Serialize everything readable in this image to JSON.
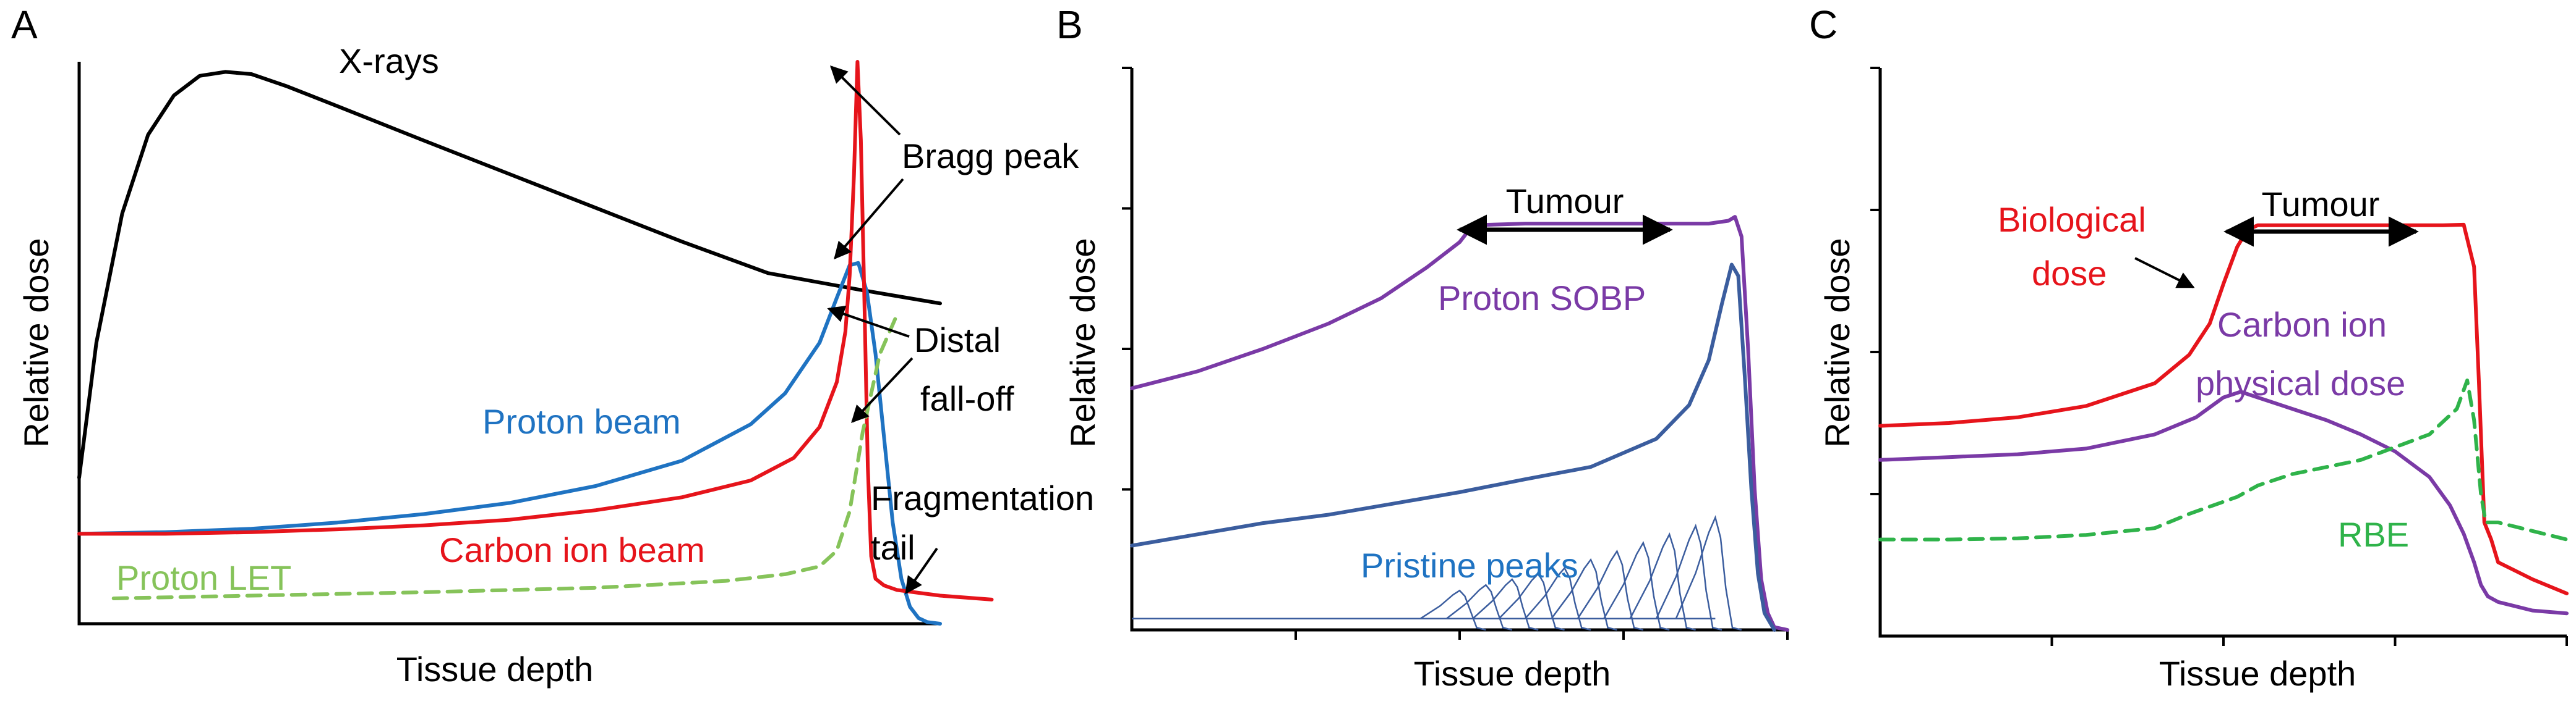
{
  "chart_data": [
    {
      "panel": "A",
      "type": "line",
      "xlabel": "Tissue depth",
      "ylabel": "Relative dose",
      "xlim": [
        0,
        100
      ],
      "ylim": [
        0,
        100
      ],
      "grid": false,
      "series": [
        {
          "name": "X-rays",
          "color": "#000000",
          "dash": "solid",
          "x": [
            0,
            2,
            5,
            8,
            11,
            14,
            17,
            20,
            24,
            30,
            40,
            50,
            60,
            70,
            80,
            90,
            95,
            100
          ],
          "y": [
            26,
            50,
            73,
            87,
            94,
            97.5,
            98.2,
            97.8,
            95.7,
            92.1,
            86,
            80,
            74,
            68,
            62.4,
            59.6,
            58.3,
            57
          ]
        },
        {
          "name": "Proton beam",
          "color": "#1f73c2",
          "dash": "solid",
          "x": [
            0,
            10,
            20,
            30,
            40,
            50,
            60,
            70,
            78,
            82,
            86,
            88,
            89.5,
            90.5,
            91.5,
            92.5,
            93.5,
            94.5,
            95.5,
            96.5,
            97.5,
            98.5,
            100
          ],
          "y": [
            16,
            16.3,
            16.9,
            18,
            19.5,
            21.5,
            24.5,
            29,
            35.5,
            41,
            50,
            58,
            63.8,
            64.2,
            59,
            48,
            33,
            18,
            8,
            3,
            1,
            0.3,
            0
          ]
        },
        {
          "name": "Carbon ion beam",
          "color": "#e6141b",
          "dash": "solid",
          "x": [
            0,
            10,
            20,
            30,
            40,
            50,
            60,
            70,
            78,
            83,
            86,
            88,
            89,
            89.5,
            90,
            90.4,
            90.8,
            91.2,
            91.6,
            92,
            92.5,
            93.5,
            95,
            98,
            100,
            106
          ],
          "y": [
            16,
            16,
            16.3,
            16.8,
            17.5,
            18.5,
            20.2,
            22.5,
            25.5,
            29.5,
            35,
            43,
            52,
            62,
            80,
            100,
            86,
            58,
            28,
            12,
            8,
            6.8,
            6,
            5.4,
            5,
            4.3
          ]
        },
        {
          "name": "Proton LET",
          "color": "#86c35a",
          "dash": "dashed",
          "x": [
            4,
            20,
            40,
            60,
            75,
            82,
            86,
            88,
            89.5,
            91,
            93,
            95
          ],
          "y": [
            4.5,
            5,
            5.6,
            6.4,
            7.6,
            8.8,
            10.2,
            13,
            20,
            34,
            48,
            55
          ]
        }
      ],
      "annotations": [
        "X-rays",
        "Bragg peak",
        "Distal",
        "fall-off",
        "Fragmentation",
        "tail",
        "Proton beam",
        "Carbon ion beam",
        "Proton LET"
      ]
    },
    {
      "panel": "B",
      "type": "line",
      "xlabel": "Tissue depth",
      "ylabel": "Relative dose",
      "xlim": [
        0,
        100
      ],
      "ylim": [
        0,
        100
      ],
      "grid": false,
      "series": [
        {
          "name": "Proton SOBP",
          "color": "#7a3aa6",
          "dash": "solid",
          "x": [
            0,
            10,
            20,
            30,
            38,
            45,
            50,
            52,
            60,
            70,
            80,
            88,
            91,
            92,
            93,
            94,
            95,
            96,
            97,
            98,
            100
          ],
          "y": [
            43,
            46,
            50,
            54.5,
            59,
            64.5,
            69,
            72,
            72.3,
            72.3,
            72.3,
            72.3,
            72.8,
            73.5,
            70,
            50,
            25,
            9,
            3,
            0.5,
            0
          ]
        },
        {
          "name": "Pristine peak (distal)",
          "color": "#3b5d9e",
          "dash": "solid",
          "x": [
            0,
            10,
            20,
            30,
            40,
            50,
            60,
            70,
            80,
            85,
            88,
            90,
            91.5,
            92.5,
            93.5,
            94.5,
            95.5,
            96.5,
            98
          ],
          "y": [
            15,
            17,
            19,
            20.5,
            22.5,
            24.5,
            26.8,
            29,
            34,
            40,
            48,
            58,
            65,
            63,
            45,
            25,
            10,
            3,
            0
          ]
        }
      ],
      "pristine_peaks": {
        "name": "Pristine peaks",
        "color": "#3b5d9e",
        "peak_positions": [
          50,
          54,
          58,
          62,
          66,
          70,
          74,
          78,
          82,
          86,
          89
        ],
        "peak_heights": [
          5,
          6,
          7,
          8,
          9,
          10.5,
          12,
          13.5,
          15,
          16.5,
          18
        ],
        "baseline": 2
      },
      "annotations": [
        "Tumour",
        "Proton SOBP",
        "Pristine peaks"
      ]
    },
    {
      "panel": "C",
      "type": "line",
      "xlabel": "Tissue depth",
      "ylabel": "Relative dose",
      "xlim": [
        0,
        100
      ],
      "ylim": [
        0,
        100
      ],
      "grid": false,
      "series": [
        {
          "name": "Biological dose",
          "color": "#e6141b",
          "dash": "solid",
          "x": [
            0,
            10,
            20,
            30,
            40,
            45,
            48,
            50,
            52,
            53.5,
            55,
            70,
            82,
            85,
            86.5,
            87.2,
            88,
            89,
            90,
            95,
            100
          ],
          "y": [
            37,
            37.5,
            38.5,
            40.5,
            44.5,
            49.5,
            55,
            62,
            68.5,
            71.5,
            72.3,
            72.3,
            72.3,
            72.4,
            65,
            45,
            20,
            17,
            13,
            10,
            7.5
          ]
        },
        {
          "name": "Carbon ion physical dose",
          "color": "#7a3aa6",
          "dash": "solid",
          "x": [
            0,
            10,
            20,
            30,
            40,
            46,
            50,
            52.5,
            55,
            60,
            65,
            70,
            75,
            80,
            83,
            85,
            86.5,
            87.5,
            88.5,
            90,
            95,
            100
          ],
          "y": [
            31,
            31.5,
            32,
            33,
            35.5,
            38.5,
            42,
            43,
            42,
            40,
            38,
            35.5,
            32.5,
            28,
            23,
            18,
            13,
            9,
            7,
            6,
            4.5,
            4
          ]
        },
        {
          "name": "RBE",
          "color": "#2fb34a",
          "dash": "dashed",
          "x": [
            0,
            10,
            20,
            30,
            40,
            45,
            52,
            55,
            60,
            70,
            80,
            84,
            85.5,
            86.5,
            87.5,
            88.2,
            89,
            90,
            95,
            100
          ],
          "y": [
            17,
            17,
            17.2,
            17.8,
            19,
            21.5,
            24.5,
            26.5,
            28.5,
            31,
            35.5,
            40,
            45,
            38,
            25,
            20,
            20,
            20,
            18.5,
            17
          ]
        }
      ],
      "annotations": [
        "Tumour",
        "Biological",
        "dose",
        "Carbon ion",
        "physical dose",
        "RBE"
      ]
    }
  ],
  "labels": {
    "A": "A",
    "B": "B",
    "C": "C",
    "xlabel_a": "Tissue depth",
    "ylabel_a": "Relative dose",
    "xlabel_b": "Tissue depth",
    "ylabel_b": "Relative dose",
    "xlabel_c": "Tissue depth",
    "ylabel_c": "Relative dose",
    "a_xrays": "X-rays",
    "a_bragg": "Bragg peak",
    "a_distal1": "Distal",
    "a_distal2": "fall-off",
    "a_frag1": "Fragmentation",
    "a_frag2": "tail",
    "a_proton": "Proton beam",
    "a_carbon": "Carbon ion beam",
    "a_let": "Proton LET",
    "b_tumour": "Tumour",
    "b_sobp": "Proton SOBP",
    "b_pristine": "Pristine peaks",
    "c_tumour": "Tumour",
    "c_bio1": "Biological",
    "c_bio2": "dose",
    "c_carbon1": "Carbon ion",
    "c_carbon2": "physical dose",
    "c_rbe": "RBE"
  }
}
